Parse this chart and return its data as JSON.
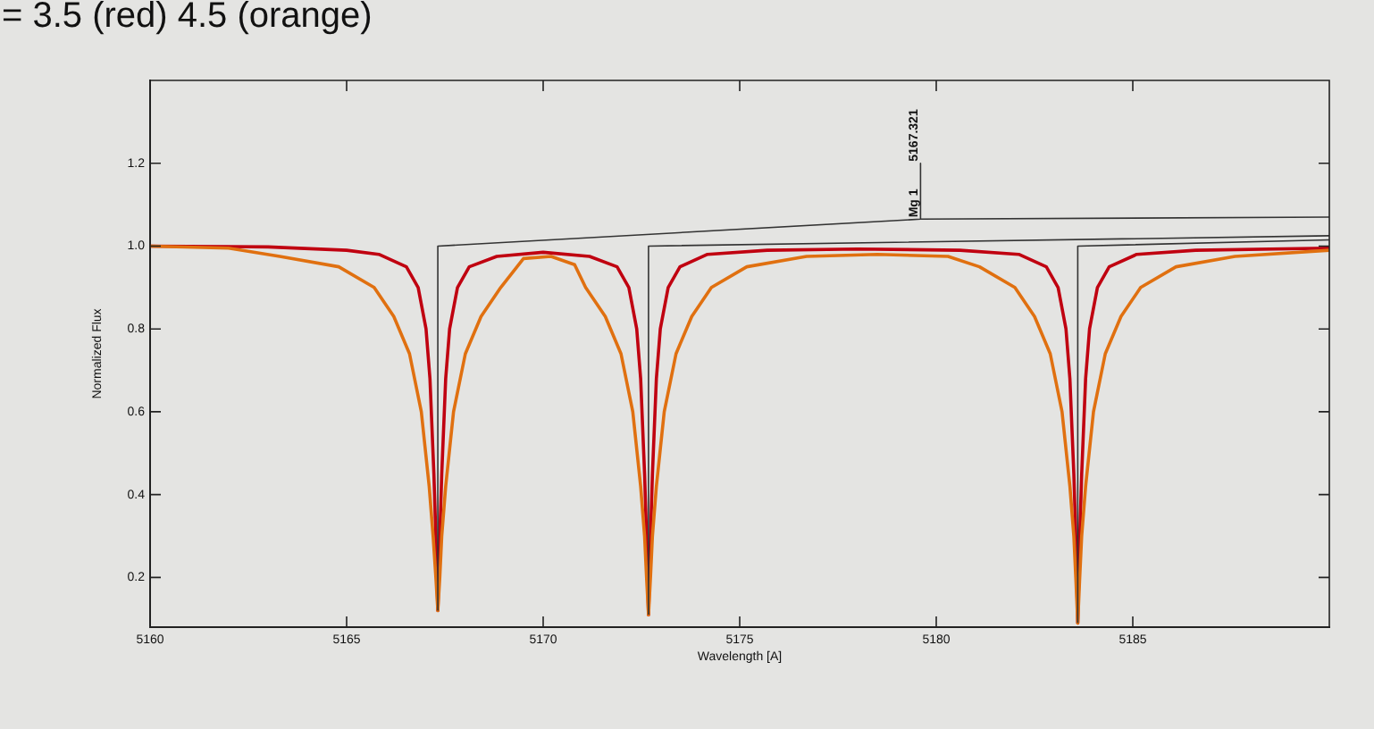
{
  "chart_data": {
    "type": "line",
    "title": "= 3.5 (red) 4.5 (orange)",
    "xlabel": "Wavelength [A]",
    "ylabel": "Normalized Flux",
    "xlim": [
      5160,
      5190
    ],
    "xticks": [
      5160,
      5165,
      5170,
      5175,
      5180,
      5185
    ],
    "ylim": [
      0.08,
      1.4
    ],
    "yticks": [
      0.2,
      0.4,
      0.6,
      0.8,
      {
        "value": 1,
        "label": "1.0"
      },
      1.2
    ],
    "grid": false,
    "legend": false,
    "marker": "none",
    "line_style": "solid",
    "annotations": [
      {
        "text": "Mg 1",
        "x": 5179.6,
        "y": 1.065
      },
      {
        "text": "5167.321",
        "x": 5179.6,
        "y": 1.2
      }
    ],
    "series": [
      {
        "color": "#333333",
        "x": [
          5167.32,
          5167.32,
          5179.6,
          5179.6,
          5179.6,
          5190
        ],
        "values": [
          0.12,
          1.0,
          1.065,
          1.2,
          1.065,
          1.07
        ]
      },
      {
        "color": "#333333",
        "x": [
          5172.68,
          5172.68,
          5190
        ],
        "values": [
          0.11,
          1.0,
          1.025
        ]
      },
      {
        "color": "#333333",
        "x": [
          5183.6,
          5183.6,
          5190
        ],
        "values": [
          0.09,
          1.0,
          1.015
        ]
      },
      {
        "color": "#e07010",
        "x": [
          5160,
          5162,
          5163.3,
          5164.8,
          5165.7,
          5166.2,
          5166.6,
          5166.9,
          5167.1,
          5167.2,
          5167.27,
          5167.32,
          5167.37,
          5167.42,
          5167.52,
          5167.72,
          5168.02,
          5168.42,
          5168.92,
          5169.5,
          5170.2,
          5170.8,
          5171.08,
          5171.58,
          5171.98,
          5172.28,
          5172.48,
          5172.58,
          5172.63,
          5172.68,
          5172.73,
          5172.78,
          5172.88,
          5173.08,
          5173.38,
          5173.78,
          5174.28,
          5175.18,
          5176.7,
          5178.5,
          5180.3,
          5181.1,
          5182.0,
          5182.5,
          5182.9,
          5183.2,
          5183.4,
          5183.5,
          5183.55,
          5183.6,
          5183.65,
          5183.7,
          5183.8,
          5184.0,
          5184.3,
          5184.7,
          5185.2,
          5186.1,
          5187.6,
          5190
        ],
        "values": [
          1.0,
          0.995,
          0.975,
          0.95,
          0.9,
          0.83,
          0.74,
          0.6,
          0.42,
          0.3,
          0.2,
          0.12,
          0.2,
          0.3,
          0.42,
          0.6,
          0.74,
          0.83,
          0.9,
          0.97,
          0.975,
          0.955,
          0.9,
          0.83,
          0.74,
          0.6,
          0.42,
          0.3,
          0.2,
          0.11,
          0.2,
          0.3,
          0.42,
          0.6,
          0.74,
          0.83,
          0.9,
          0.95,
          0.975,
          0.98,
          0.975,
          0.95,
          0.9,
          0.83,
          0.74,
          0.6,
          0.42,
          0.3,
          0.2,
          0.09,
          0.2,
          0.3,
          0.42,
          0.6,
          0.74,
          0.83,
          0.9,
          0.95,
          0.975,
          0.99
        ]
      },
      {
        "color": "#c00010",
        "x": [
          5160,
          5163,
          5165,
          5165.82,
          5166.52,
          5166.82,
          5167.02,
          5167.12,
          5167.22,
          5167.27,
          5167.32,
          5167.37,
          5167.42,
          5167.52,
          5167.62,
          5167.82,
          5168.12,
          5168.82,
          5170,
          5171.18,
          5171.88,
          5172.18,
          5172.38,
          5172.48,
          5172.58,
          5172.63,
          5172.68,
          5172.73,
          5172.78,
          5172.88,
          5172.98,
          5173.18,
          5173.48,
          5174.18,
          5175.7,
          5178,
          5180.6,
          5182.1,
          5182.8,
          5183.1,
          5183.3,
          5183.4,
          5183.5,
          5183.55,
          5183.6,
          5183.65,
          5183.7,
          5183.8,
          5183.9,
          5184.1,
          5184.4,
          5185.1,
          5186.6,
          5190
        ],
        "values": [
          1.0,
          0.998,
          0.99,
          0.98,
          0.95,
          0.9,
          0.8,
          0.68,
          0.45,
          0.3,
          0.12,
          0.3,
          0.45,
          0.68,
          0.8,
          0.9,
          0.95,
          0.975,
          0.985,
          0.975,
          0.95,
          0.9,
          0.8,
          0.68,
          0.45,
          0.3,
          0.11,
          0.3,
          0.45,
          0.68,
          0.8,
          0.9,
          0.95,
          0.98,
          0.99,
          0.993,
          0.99,
          0.98,
          0.95,
          0.9,
          0.8,
          0.68,
          0.45,
          0.3,
          0.09,
          0.3,
          0.45,
          0.68,
          0.8,
          0.9,
          0.95,
          0.98,
          0.99,
          0.995
        ]
      }
    ]
  }
}
